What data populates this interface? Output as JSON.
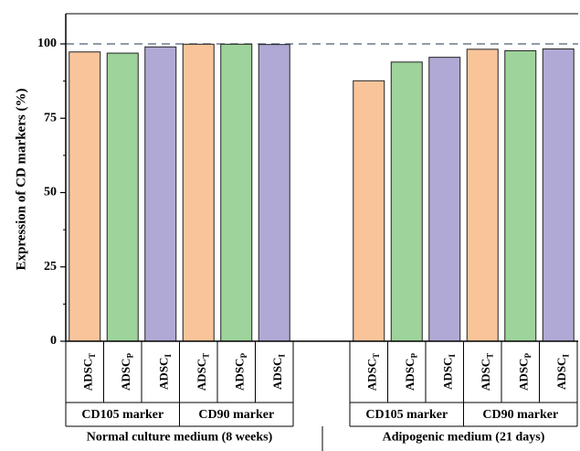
{
  "chart_data": {
    "type": "bar",
    "title": "",
    "ylabel": "Expression of CD markers (%)",
    "ylim": [
      0,
      110
    ],
    "yticks": [
      0,
      25,
      50,
      75,
      100
    ],
    "reference_line": {
      "y": 100,
      "style": "dashed",
      "color": "#6b7a8c"
    },
    "grid": false,
    "colors": {
      "T": "#f9c49a",
      "P": "#9ed39b",
      "I": "#b0a9d6"
    },
    "groups": [
      {
        "medium": "Normal culture medium (8 weeks)",
        "markers": [
          {
            "name": "CD105 marker",
            "bars": [
              {
                "base": "ADSC",
                "sub": "T",
                "value": 97.3
              },
              {
                "base": "ADSC",
                "sub": "P",
                "value": 96.9
              },
              {
                "base": "ADSC",
                "sub": "I",
                "value": 99.0
              }
            ]
          },
          {
            "name": "CD90 marker",
            "bars": [
              {
                "base": "ADSC",
                "sub": "T",
                "value": 99.9
              },
              {
                "base": "ADSC",
                "sub": "P",
                "value": 99.9
              },
              {
                "base": "ADSC",
                "sub": "I",
                "value": 99.8
              }
            ]
          }
        ]
      },
      {
        "medium": "Adipogenic medium (21 days)",
        "markers": [
          {
            "name": "CD105 marker",
            "bars": [
              {
                "base": "ADSC",
                "sub": "T",
                "value": 87.6
              },
              {
                "base": "ADSC",
                "sub": "P",
                "value": 93.9
              },
              {
                "base": "ADSC",
                "sub": "I",
                "value": 95.5
              }
            ]
          },
          {
            "name": "CD90 marker",
            "bars": [
              {
                "base": "ADSC",
                "sub": "T",
                "value": 98.2
              },
              {
                "base": "ADSC",
                "sub": "P",
                "value": 97.7
              },
              {
                "base": "ADSC",
                "sub": "I",
                "value": 98.3
              }
            ]
          }
        ]
      }
    ]
  }
}
